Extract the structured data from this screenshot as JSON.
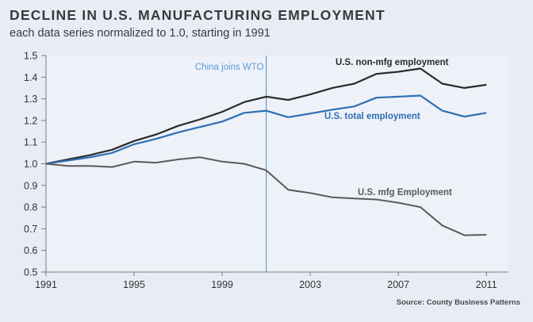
{
  "chart_data": {
    "type": "line",
    "title": "DECLINE IN U.S. MANUFACTURING EMPLOYMENT",
    "subtitle": "each data series normalized to 1.0, starting in 1991",
    "xlabel": "",
    "ylabel": "",
    "x": [
      1991,
      1992,
      1993,
      1994,
      1995,
      1996,
      1997,
      1998,
      1999,
      2000,
      2001,
      2002,
      2003,
      2004,
      2005,
      2006,
      2007,
      2008,
      2009,
      2010,
      2011
    ],
    "xlim": [
      1991,
      2012
    ],
    "ylim": [
      0.5,
      1.5
    ],
    "x_ticks": [
      "1991",
      "1995",
      "1999",
      "2003",
      "2007",
      "2011"
    ],
    "y_ticks": [
      "0.5",
      "0.6",
      "0.7",
      "0.8",
      "0.9",
      "1.0",
      "1.1",
      "1.2",
      "1.3",
      "1.4",
      "1.5"
    ],
    "grid": false,
    "series": [
      {
        "name": "U.S. non-mfg employment",
        "color": "#2b2b2b",
        "values": [
          1.0,
          1.02,
          1.04,
          1.065,
          1.105,
          1.135,
          1.175,
          1.205,
          1.24,
          1.285,
          1.31,
          1.295,
          1.32,
          1.35,
          1.37,
          1.415,
          1.425,
          1.44,
          1.37,
          1.35,
          1.365
        ]
      },
      {
        "name": "U.S. total employment",
        "color": "#2f6fb5",
        "values": [
          1.0,
          1.015,
          1.03,
          1.05,
          1.09,
          1.115,
          1.145,
          1.17,
          1.195,
          1.235,
          1.245,
          1.215,
          1.232,
          1.25,
          1.265,
          1.305,
          1.31,
          1.315,
          1.245,
          1.218,
          1.235
        ]
      },
      {
        "name": "U.S. mfg Employment",
        "color": "#5a5a5a",
        "values": [
          1.0,
          0.99,
          0.99,
          0.985,
          1.01,
          1.005,
          1.02,
          1.03,
          1.01,
          1.0,
          0.97,
          0.88,
          0.865,
          0.845,
          0.84,
          0.835,
          0.82,
          0.8,
          0.715,
          0.67,
          0.672
        ]
      }
    ],
    "annotations": [
      {
        "text": "China joins WTO",
        "x": 2001,
        "color": "#5b9bd5"
      }
    ],
    "source": "Source: County Business Patterns"
  }
}
